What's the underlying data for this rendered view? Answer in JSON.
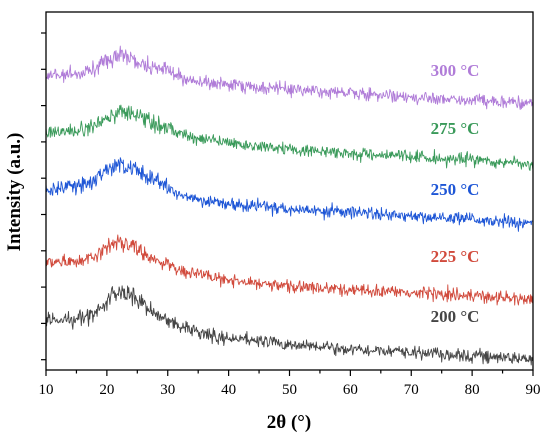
{
  "chart_data": {
    "type": "line",
    "title": "",
    "xlabel": "2θ (°)",
    "ylabel": "Intensity (a.u.)",
    "xlim": [
      10,
      90
    ],
    "xticks": [
      "10",
      "20",
      "30",
      "40",
      "50",
      "60",
      "70",
      "80",
      "90"
    ],
    "yticks_labeled": false,
    "grid": false,
    "legend": "inline labels at right",
    "series": [
      {
        "name": "300 °C",
        "color": "#b07cd8",
        "x": [
          10,
          15,
          18,
          20,
          22,
          24,
          26,
          28,
          30,
          32,
          35,
          40,
          50,
          60,
          70,
          80,
          90
        ],
        "y": [
          1.0,
          1.02,
          1.15,
          1.3,
          1.45,
          1.4,
          1.25,
          1.12,
          1.1,
          0.95,
          0.85,
          0.78,
          0.68,
          0.6,
          0.52,
          0.45,
          0.35
        ]
      },
      {
        "name": "275 °C",
        "color": "#3a9a5a",
        "x": [
          10,
          15,
          18,
          20,
          22,
          24,
          26,
          28,
          30,
          32,
          35,
          40,
          50,
          60,
          70,
          80,
          90
        ],
        "y": [
          1.0,
          1.02,
          1.15,
          1.32,
          1.45,
          1.4,
          1.28,
          1.15,
          1.12,
          0.95,
          0.85,
          0.75,
          0.62,
          0.52,
          0.45,
          0.38,
          0.28
        ]
      },
      {
        "name": "250 °C",
        "color": "#1e56d6",
        "x": [
          10,
          15,
          18,
          20,
          22,
          24,
          26,
          28,
          30,
          32,
          35,
          40,
          50,
          60,
          70,
          80,
          90
        ],
        "y": [
          1.0,
          1.05,
          1.22,
          1.4,
          1.55,
          1.5,
          1.35,
          1.2,
          1.05,
          0.9,
          0.8,
          0.7,
          0.58,
          0.5,
          0.42,
          0.35,
          0.25
        ]
      },
      {
        "name": "225 °C",
        "color": "#d14a3c",
        "x": [
          10,
          15,
          18,
          20,
          22,
          24,
          26,
          28,
          30,
          32,
          35,
          40,
          50,
          60,
          70,
          80,
          90
        ],
        "y": [
          1.0,
          1.02,
          1.1,
          1.3,
          1.45,
          1.35,
          1.2,
          1.05,
          0.95,
          0.82,
          0.72,
          0.6,
          0.45,
          0.38,
          0.32,
          0.25,
          0.18
        ]
      },
      {
        "name": "200 °C",
        "color": "#454545",
        "x": [
          10,
          15,
          18,
          20,
          22,
          24,
          26,
          28,
          30,
          32,
          35,
          40,
          50,
          60,
          70,
          80,
          90
        ],
        "y": [
          1.0,
          1.02,
          1.15,
          1.4,
          1.65,
          1.55,
          1.35,
          1.15,
          0.98,
          0.85,
          0.72,
          0.6,
          0.45,
          0.35,
          0.28,
          0.2,
          0.12
        ]
      }
    ]
  }
}
